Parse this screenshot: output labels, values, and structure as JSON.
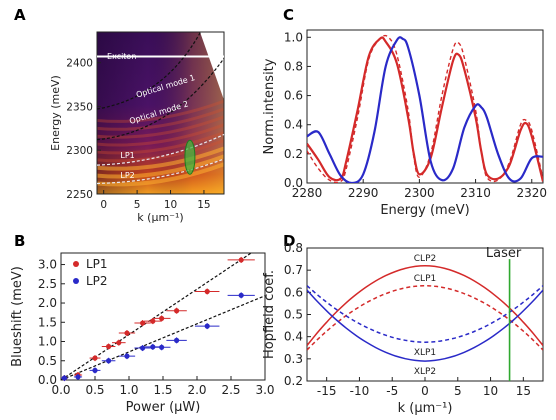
{
  "panel_letters": {
    "a": "A",
    "b": "B",
    "c": "C",
    "d": "D"
  },
  "colors": {
    "red": "#d42a2a",
    "blue": "#2a2ac8",
    "green": "#2fa82f",
    "exciton": "#ffffff"
  },
  "chart_data": [
    {
      "panel": "A",
      "type": "heatmap",
      "xlabel": "k (μm⁻¹)",
      "ylabel": "Energy (meV)",
      "xlim": [
        -1,
        18
      ],
      "ylim": [
        2250,
        2435
      ],
      "xticks": [
        "0",
        "5",
        "10",
        "15"
      ],
      "yticks": [
        "2250",
        "2300",
        "2350",
        "2400"
      ],
      "colormap": "inferno",
      "annotations": [
        {
          "text": "Exciton",
          "x": 0.5,
          "y": 2404
        },
        {
          "text": "Optical mode 1",
          "x": 5,
          "y": 2360
        },
        {
          "text": "Optical mode 2",
          "x": 4,
          "y": 2330
        },
        {
          "text": "LP1",
          "x": 2.5,
          "y": 2291
        },
        {
          "text": "LP2",
          "x": 2.5,
          "y": 2268
        }
      ],
      "exciton_energy": 2407,
      "highlight_ellipse": {
        "k": 12.9,
        "energy": 2292
      }
    },
    {
      "panel": "B",
      "type": "scatter",
      "xlabel": "Power (μW)",
      "ylabel": "Blueshift (meV)",
      "xlim": [
        0,
        3.0
      ],
      "ylim": [
        0,
        3.3
      ],
      "xticks": [
        "0.0",
        "0.5",
        "1.0",
        "1.5",
        "2.0",
        "2.5",
        "3.0"
      ],
      "yticks": [
        "0.0",
        "0.5",
        "1.0",
        "1.5",
        "2.0",
        "2.5",
        "3.0"
      ],
      "legend_position": "top-left",
      "series": [
        {
          "name": "LP1",
          "color": "#d42a2a",
          "x": [
            0.05,
            0.25,
            0.5,
            0.7,
            0.85,
            0.97,
            1.2,
            1.35,
            1.48,
            1.7,
            2.15,
            2.65
          ],
          "y": [
            0.05,
            0.13,
            0.57,
            0.87,
            0.97,
            1.22,
            1.48,
            1.53,
            1.6,
            1.8,
            2.3,
            3.12
          ],
          "xerr": [
            0.05,
            0.06,
            0.08,
            0.1,
            0.1,
            0.12,
            0.12,
            0.13,
            0.13,
            0.15,
            0.18,
            0.2
          ],
          "fit_slope": 1.18
        },
        {
          "name": "LP2",
          "color": "#2a2ac8",
          "x": [
            0.05,
            0.25,
            0.5,
            0.7,
            0.97,
            1.2,
            1.35,
            1.48,
            1.7,
            2.15,
            2.65
          ],
          "y": [
            0.05,
            0.08,
            0.25,
            0.5,
            0.62,
            0.83,
            0.86,
            0.85,
            1.03,
            1.4,
            2.2
          ],
          "xerr": [
            0.05,
            0.06,
            0.08,
            0.1,
            0.12,
            0.12,
            0.13,
            0.13,
            0.15,
            0.18,
            0.2
          ],
          "fit_slope": 0.73
        }
      ]
    },
    {
      "panel": "C",
      "type": "line",
      "xlabel": "Energy (meV)",
      "ylabel": "Norm.intensity",
      "xlim": [
        2280,
        2322
      ],
      "ylim": [
        0,
        1.05
      ],
      "xticks": [
        "2280",
        "2290",
        "2300",
        "2310",
        "2320"
      ],
      "yticks": [
        "0.0",
        "0.2",
        "0.4",
        "0.6",
        "0.8",
        "1.0"
      ],
      "series": [
        {
          "color": "#d42a2a",
          "style": "solid",
          "x": [
            2280,
            2282,
            2284,
            2286,
            2287,
            2289,
            2291,
            2293,
            2294,
            2296,
            2298,
            2299,
            2300,
            2302,
            2304,
            2306,
            2307,
            2308,
            2310,
            2311,
            2312,
            2314,
            2316,
            2318,
            2319,
            2320,
            2322
          ],
          "y": [
            0.27,
            0.16,
            0.04,
            0.03,
            0.15,
            0.5,
            0.87,
            0.99,
            0.97,
            0.82,
            0.45,
            0.2,
            0.06,
            0.17,
            0.52,
            0.84,
            0.88,
            0.78,
            0.45,
            0.22,
            0.06,
            0.03,
            0.12,
            0.36,
            0.41,
            0.32,
            0.01
          ]
        },
        {
          "color": "#d42a2a",
          "style": "dashed",
          "x": [
            2280,
            2282,
            2284,
            2286,
            2287,
            2289,
            2291,
            2293,
            2294.5,
            2296,
            2298,
            2299,
            2300,
            2302,
            2304,
            2306,
            2307,
            2308,
            2310,
            2311,
            2312,
            2314,
            2316,
            2318,
            2319,
            2320,
            2322
          ],
          "y": [
            0.22,
            0.1,
            0.02,
            0.01,
            0.1,
            0.45,
            0.85,
            0.99,
            1.0,
            0.88,
            0.5,
            0.18,
            0.04,
            0.2,
            0.6,
            0.92,
            0.96,
            0.86,
            0.5,
            0.22,
            0.04,
            0.02,
            0.14,
            0.4,
            0.43,
            0.36,
            0.03
          ]
        },
        {
          "color": "#2a2ac8",
          "style": "solid",
          "x": [
            2280,
            2282,
            2284,
            2286,
            2288,
            2290,
            2292,
            2294,
            2296,
            2297,
            2298,
            2300,
            2302,
            2304,
            2306,
            2308,
            2310,
            2311,
            2312,
            2314,
            2316,
            2318,
            2320,
            2322
          ],
          "y": [
            0.32,
            0.35,
            0.2,
            0.05,
            0.0,
            0.06,
            0.35,
            0.8,
            0.98,
            0.99,
            0.93,
            0.6,
            0.15,
            0.02,
            0.1,
            0.38,
            0.53,
            0.52,
            0.45,
            0.2,
            0.03,
            0.03,
            0.17,
            0.18
          ]
        }
      ]
    },
    {
      "panel": "D",
      "type": "line",
      "xlabel": "k (μm⁻¹)",
      "ylabel": "Hopfield coef.",
      "xlim": [
        -18,
        18
      ],
      "ylim": [
        0.2,
        0.8
      ],
      "xticks": [
        "-15",
        "-10",
        "-5",
        "0",
        "5",
        "10",
        "15"
      ],
      "yticks": [
        "0.2",
        "0.3",
        "0.4",
        "0.5",
        "0.6",
        "0.7",
        "0.8"
      ],
      "laser_label": "Laser",
      "laser_k": 12.9,
      "series": [
        {
          "name": "CLP2",
          "color": "#d42a2a",
          "style": "solid",
          "center": 0.72,
          "edge": 0.36
        },
        {
          "name": "CLP1",
          "color": "#d42a2a",
          "style": "dashed",
          "center": 0.63,
          "edge": 0.34
        },
        {
          "name": "XLP1",
          "color": "#2a2ac8",
          "style": "dashed",
          "center": 0.375,
          "edge": 0.63
        },
        {
          "name": "XLP2",
          "color": "#2a2ac8",
          "style": "solid",
          "center": 0.29,
          "edge": 0.61
        }
      ]
    }
  ]
}
